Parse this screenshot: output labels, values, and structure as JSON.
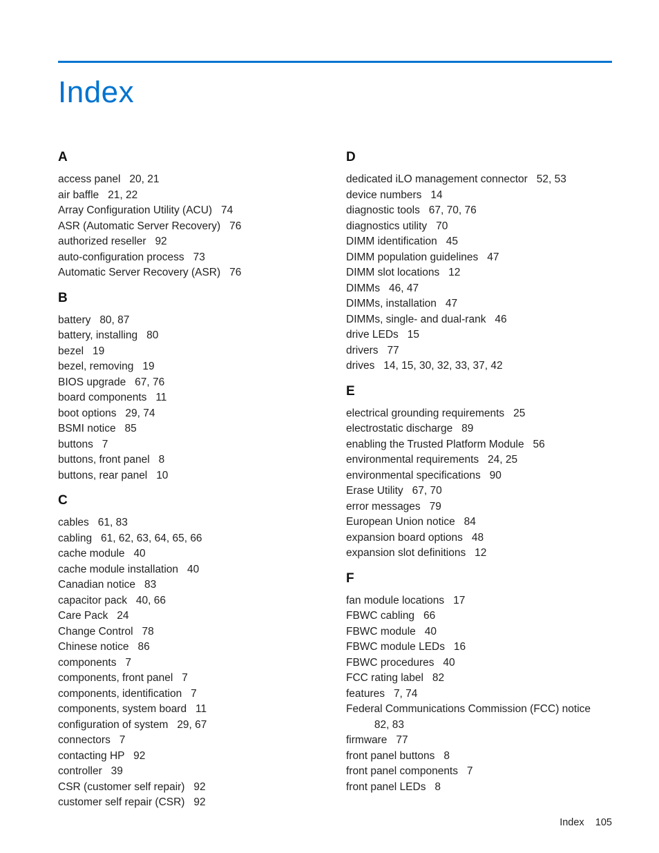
{
  "colors": {
    "accent": "#0073cf",
    "text": "#222222",
    "background": "#ffffff"
  },
  "title": "Index",
  "footer": {
    "label": "Index",
    "page": "105"
  },
  "columns": [
    {
      "sections": [
        {
          "letter": "A",
          "entries": [
            {
              "term": "access panel",
              "pages": "20, 21"
            },
            {
              "term": "air baffle",
              "pages": "21, 22"
            },
            {
              "term": "Array Configuration Utility (ACU)",
              "pages": "74"
            },
            {
              "term": "ASR (Automatic Server Recovery)",
              "pages": "76"
            },
            {
              "term": "authorized reseller",
              "pages": "92"
            },
            {
              "term": "auto-configuration process",
              "pages": "73"
            },
            {
              "term": "Automatic Server Recovery (ASR)",
              "pages": "76"
            }
          ]
        },
        {
          "letter": "B",
          "entries": [
            {
              "term": "battery",
              "pages": "80, 87"
            },
            {
              "term": "battery, installing",
              "pages": "80"
            },
            {
              "term": "bezel",
              "pages": "19"
            },
            {
              "term": "bezel, removing",
              "pages": "19"
            },
            {
              "term": "BIOS upgrade",
              "pages": "67, 76"
            },
            {
              "term": "board components",
              "pages": "11"
            },
            {
              "term": "boot options",
              "pages": "29, 74"
            },
            {
              "term": "BSMI notice",
              "pages": "85"
            },
            {
              "term": "buttons",
              "pages": "7"
            },
            {
              "term": "buttons, front panel",
              "pages": "8"
            },
            {
              "term": "buttons, rear panel",
              "pages": "10"
            }
          ]
        },
        {
          "letter": "C",
          "entries": [
            {
              "term": "cables",
              "pages": "61, 83"
            },
            {
              "term": "cabling",
              "pages": "61, 62, 63, 64, 65, 66"
            },
            {
              "term": "cache module",
              "pages": "40"
            },
            {
              "term": "cache module installation",
              "pages": "40"
            },
            {
              "term": "Canadian notice",
              "pages": "83"
            },
            {
              "term": "capacitor pack",
              "pages": "40, 66"
            },
            {
              "term": "Care Pack",
              "pages": "24"
            },
            {
              "term": "Change Control",
              "pages": "78"
            },
            {
              "term": "Chinese notice",
              "pages": "86"
            },
            {
              "term": "components",
              "pages": "7"
            },
            {
              "term": "components, front panel",
              "pages": "7"
            },
            {
              "term": "components, identification",
              "pages": "7"
            },
            {
              "term": "components, system board",
              "pages": "11"
            },
            {
              "term": "configuration of system",
              "pages": "29, 67"
            },
            {
              "term": "connectors",
              "pages": "7"
            },
            {
              "term": "contacting HP",
              "pages": "92"
            },
            {
              "term": "controller",
              "pages": "39"
            },
            {
              "term": "CSR (customer self repair)",
              "pages": "92"
            },
            {
              "term": "customer self repair (CSR)",
              "pages": "92"
            }
          ]
        }
      ]
    },
    {
      "sections": [
        {
          "letter": "D",
          "entries": [
            {
              "term": "dedicated iLO management connector",
              "pages": "52, 53"
            },
            {
              "term": "device numbers",
              "pages": "14"
            },
            {
              "term": "diagnostic tools",
              "pages": "67, 70, 76"
            },
            {
              "term": "diagnostics utility",
              "pages": "70"
            },
            {
              "term": "DIMM identification",
              "pages": "45"
            },
            {
              "term": "DIMM population guidelines",
              "pages": "47"
            },
            {
              "term": "DIMM slot locations",
              "pages": "12"
            },
            {
              "term": "DIMMs",
              "pages": "46, 47"
            },
            {
              "term": "DIMMs, installation",
              "pages": "47"
            },
            {
              "term": "DIMMs, single- and dual-rank",
              "pages": "46"
            },
            {
              "term": "drive LEDs",
              "pages": "15"
            },
            {
              "term": "drivers",
              "pages": "77"
            },
            {
              "term": "drives",
              "pages": "14, 15, 30, 32, 33, 37, 42"
            }
          ]
        },
        {
          "letter": "E",
          "entries": [
            {
              "term": "electrical grounding requirements",
              "pages": "25"
            },
            {
              "term": "electrostatic discharge",
              "pages": "89"
            },
            {
              "term": "enabling the Trusted Platform Module",
              "pages": "56"
            },
            {
              "term": "environmental requirements",
              "pages": "24, 25"
            },
            {
              "term": "environmental specifications",
              "pages": "90"
            },
            {
              "term": "Erase Utility",
              "pages": "67, 70"
            },
            {
              "term": "error messages",
              "pages": "79"
            },
            {
              "term": "European Union notice",
              "pages": "84"
            },
            {
              "term": "expansion board options",
              "pages": "48"
            },
            {
              "term": "expansion slot definitions",
              "pages": "12"
            }
          ]
        },
        {
          "letter": "F",
          "entries": [
            {
              "term": "fan module locations",
              "pages": "17"
            },
            {
              "term": "FBWC cabling",
              "pages": "66"
            },
            {
              "term": "FBWC module",
              "pages": "40"
            },
            {
              "term": "FBWC module LEDs",
              "pages": "16"
            },
            {
              "term": "FBWC procedures",
              "pages": "40"
            },
            {
              "term": "FCC rating label",
              "pages": "82"
            },
            {
              "term": "features",
              "pages": "7, 74"
            },
            {
              "term": "Federal Communications Commission (FCC) notice",
              "pages": "82, 83"
            },
            {
              "term": "firmware",
              "pages": "77"
            },
            {
              "term": "front panel buttons",
              "pages": "8"
            },
            {
              "term": "front panel components",
              "pages": "7"
            },
            {
              "term": "front panel LEDs",
              "pages": "8"
            }
          ]
        }
      ]
    }
  ]
}
